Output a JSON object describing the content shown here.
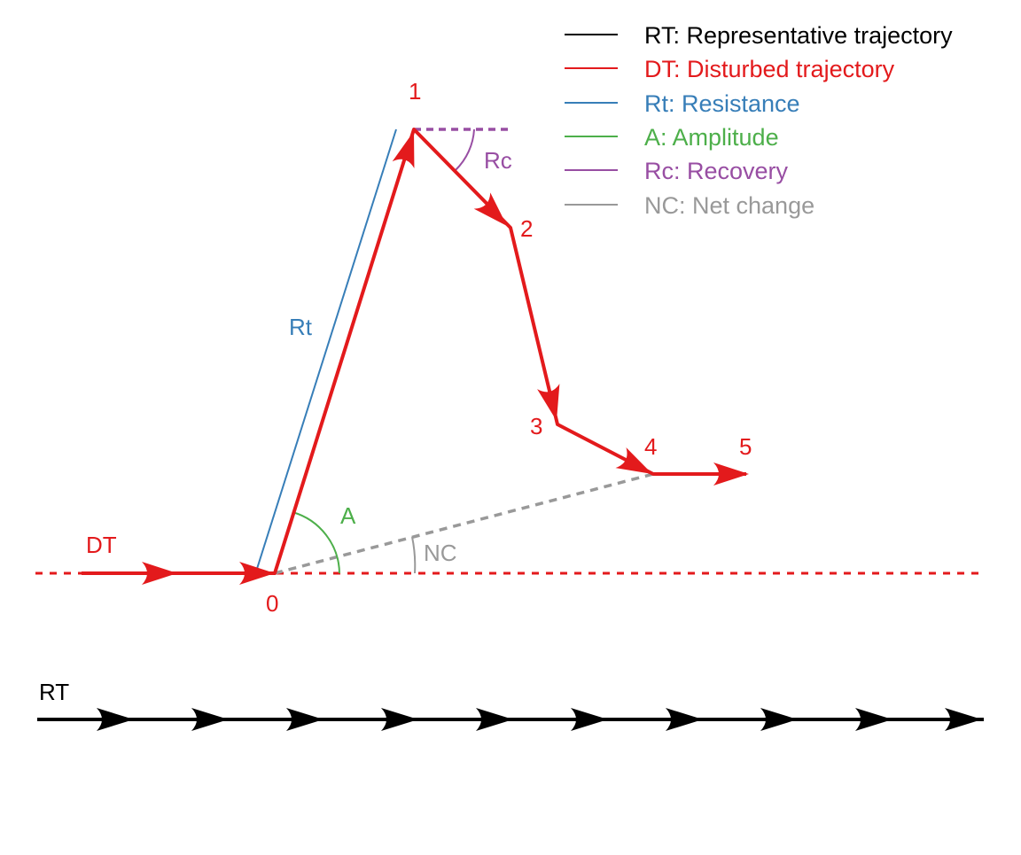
{
  "colors": {
    "rt": "#000000",
    "dt": "#e31a1c",
    "rt_resistance": "#377eb8",
    "amplitude": "#4daf4a",
    "recovery": "#984ea3",
    "net_change": "#999999"
  },
  "legend": [
    {
      "key": "rt",
      "label": "RT: Representative trajectory"
    },
    {
      "key": "dt",
      "label": "DT: Disturbed trajectory"
    },
    {
      "key": "rt_resistance",
      "label": "Rt: Resistance"
    },
    {
      "key": "amplitude",
      "label": "A: Amplitude"
    },
    {
      "key": "recovery",
      "label": "Rc: Recovery"
    },
    {
      "key": "net_change",
      "label": "NC: Net change"
    }
  ],
  "labels": {
    "dt": "DT",
    "rt": "RT",
    "resistance": "Rt",
    "amplitude": "A",
    "recovery": "Rc",
    "net_change": "NC"
  },
  "points": [
    "0",
    "1",
    "2",
    "3",
    "4",
    "5"
  ]
}
